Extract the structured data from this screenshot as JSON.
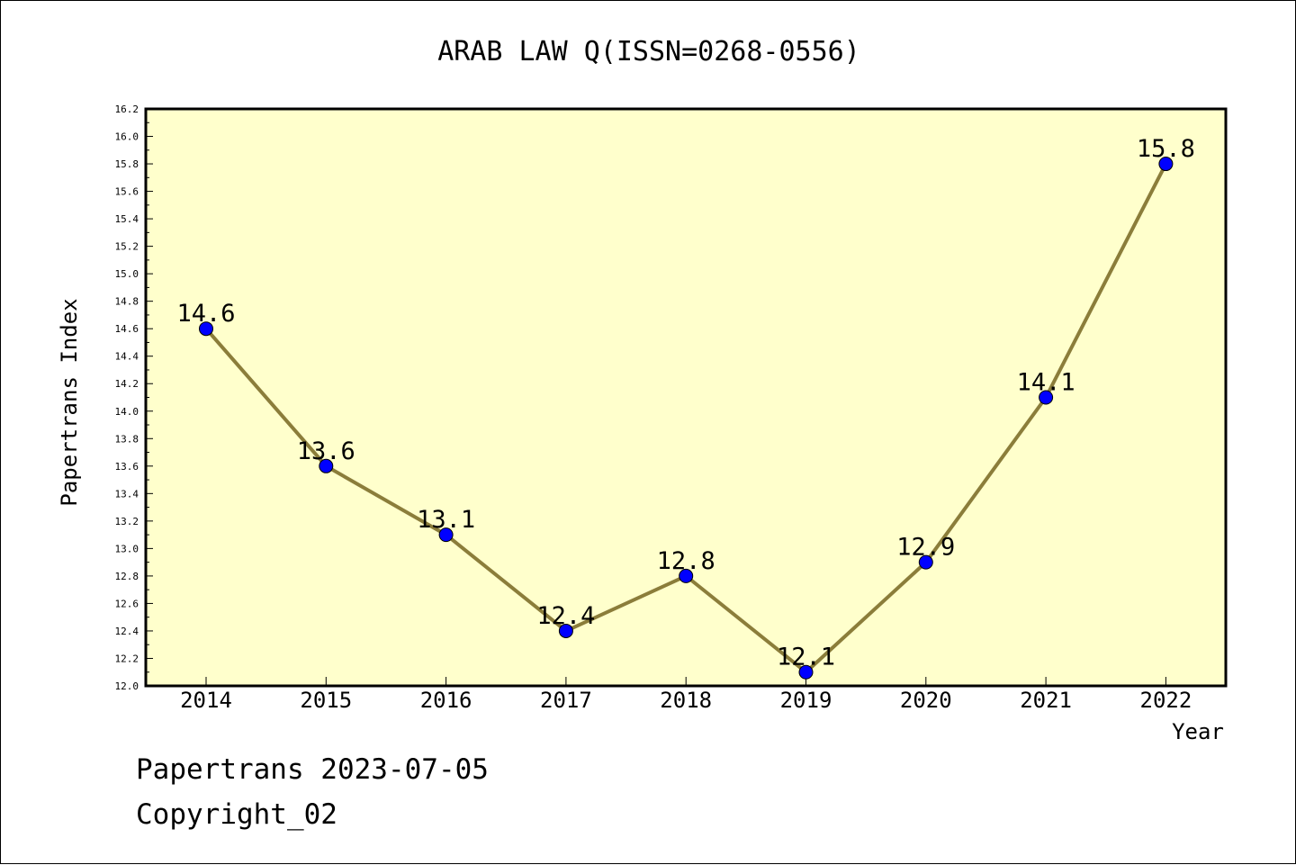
{
  "chart_data": {
    "type": "line",
    "title": "ARAB LAW Q(ISSN=0268-0556)",
    "xlabel": "Year",
    "ylabel": "Papertrans Index",
    "categories": [
      "2014",
      "2015",
      "2016",
      "2017",
      "2018",
      "2019",
      "2020",
      "2021",
      "2022"
    ],
    "values": [
      14.6,
      13.6,
      13.1,
      12.4,
      12.8,
      12.1,
      12.9,
      14.1,
      15.8
    ],
    "data_labels": [
      "14.6",
      "13.6",
      "13.1",
      "12.4",
      "12.8",
      "12.1",
      "12.9",
      "14.1",
      "15.8"
    ],
    "ylim": [
      12.0,
      16.2
    ],
    "yticks": [
      "12.0",
      "12.2",
      "12.4",
      "12.6",
      "12.8",
      "13.0",
      "13.2",
      "13.4",
      "13.6",
      "13.8",
      "14.0",
      "14.2",
      "14.4",
      "14.6",
      "14.8",
      "15.0",
      "15.2",
      "15.4",
      "15.6",
      "15.8",
      "16.0",
      "16.2"
    ],
    "grid": false,
    "colors": {
      "plot_background": "#ffffcc",
      "line": "#8b7d3a",
      "marker": "#0000ff"
    }
  },
  "footer": {
    "line1": "Papertrans 2023-07-05",
    "line2": "Copyright_02"
  }
}
